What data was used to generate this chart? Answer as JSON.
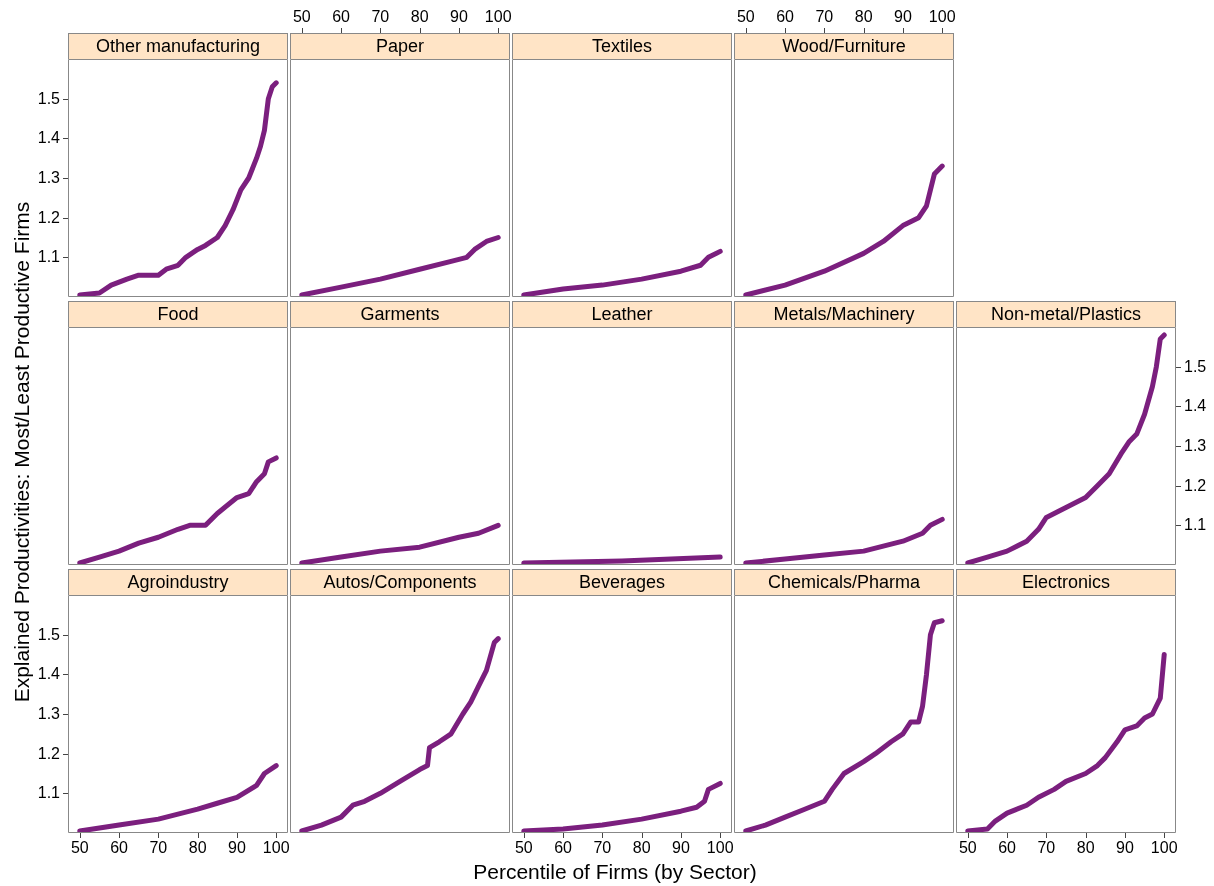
{
  "chart_data": [
    {
      "type": "line",
      "title": "Other manufacturing",
      "color": "#7b1f7e",
      "marker": "none",
      "line_style": "solid",
      "xlim": [
        47,
        103
      ],
      "ylim": [
        1.0,
        1.6
      ],
      "yticks": [
        1.1,
        1.2,
        1.3,
        1.4,
        1.5
      ],
      "tick_labels": "y",
      "x": [
        50,
        55,
        58,
        62,
        65,
        70,
        72,
        75,
        77,
        80,
        82,
        85,
        87,
        89,
        91,
        93,
        95,
        96,
        97,
        98,
        99,
        100
      ],
      "values": [
        1.005,
        1.01,
        1.03,
        1.045,
        1.055,
        1.055,
        1.07,
        1.08,
        1.1,
        1.12,
        1.13,
        1.15,
        1.18,
        1.22,
        1.27,
        1.3,
        1.35,
        1.38,
        1.42,
        1.5,
        1.53,
        1.54
      ]
    },
    {
      "type": "line",
      "title": "Paper",
      "color": "#7b1f7e",
      "marker": "none",
      "line_style": "solid",
      "xlim": [
        47,
        103
      ],
      "x2lim": [
        47,
        103
      ],
      "x2ticks": [
        50,
        60,
        70,
        80,
        90,
        100
      ],
      "ylim": [
        1.0,
        1.6
      ],
      "tick_labels": "x2",
      "x": [
        50,
        60,
        70,
        80,
        88,
        92,
        94,
        97,
        100
      ],
      "values": [
        1.005,
        1.025,
        1.045,
        1.07,
        1.09,
        1.1,
        1.12,
        1.14,
        1.15
      ]
    },
    {
      "type": "line",
      "title": "Textiles",
      "color": "#7b1f7e",
      "marker": "none",
      "line_style": "solid",
      "xlim": [
        47,
        103
      ],
      "ylim": [
        1.0,
        1.6
      ],
      "x": [
        50,
        60,
        70,
        80,
        90,
        95,
        97,
        100
      ],
      "values": [
        1.005,
        1.02,
        1.03,
        1.045,
        1.065,
        1.08,
        1.1,
        1.115
      ]
    },
    {
      "type": "line",
      "title": "Wood/Furniture",
      "color": "#7b1f7e",
      "marker": "none",
      "line_style": "solid",
      "xlim": [
        47,
        103
      ],
      "x2lim": [
        47,
        103
      ],
      "x2ticks": [
        50,
        60,
        70,
        80,
        90,
        100
      ],
      "ylim": [
        1.0,
        1.6
      ],
      "tick_labels": "x2",
      "x": [
        50,
        60,
        70,
        80,
        85,
        90,
        94,
        96,
        98,
        100
      ],
      "values": [
        1.005,
        1.03,
        1.065,
        1.11,
        1.14,
        1.18,
        1.2,
        1.23,
        1.31,
        1.33
      ]
    },
    {
      "type": "line",
      "title": "Food",
      "ylabel": "Explained Productivities: Most/Least Productive Firms",
      "color": "#7b1f7e",
      "marker": "none",
      "line_style": "solid",
      "xlim": [
        47,
        103
      ],
      "ylim": [
        1.0,
        1.6
      ],
      "x": [
        50,
        55,
        60,
        65,
        70,
        75,
        78,
        82,
        85,
        90,
        93,
        95,
        97,
        98,
        100
      ],
      "values": [
        1.005,
        1.02,
        1.035,
        1.055,
        1.07,
        1.09,
        1.1,
        1.1,
        1.13,
        1.17,
        1.18,
        1.21,
        1.23,
        1.26,
        1.27
      ]
    },
    {
      "type": "line",
      "title": "Garments",
      "color": "#7b1f7e",
      "marker": "none",
      "line_style": "solid",
      "xlim": [
        47,
        103
      ],
      "ylim": [
        1.0,
        1.6
      ],
      "x": [
        50,
        60,
        70,
        80,
        90,
        95,
        100
      ],
      "values": [
        1.005,
        1.02,
        1.035,
        1.045,
        1.07,
        1.08,
        1.1
      ]
    },
    {
      "type": "line",
      "title": "Leather",
      "color": "#7b1f7e",
      "marker": "none",
      "line_style": "solid",
      "xlim": [
        47,
        103
      ],
      "ylim": [
        1.0,
        1.6
      ],
      "x": [
        50,
        75,
        100
      ],
      "values": [
        1.005,
        1.01,
        1.02
      ]
    },
    {
      "type": "line",
      "title": "Metals/Machinery",
      "color": "#7b1f7e",
      "marker": "none",
      "line_style": "solid",
      "xlim": [
        47,
        103
      ],
      "ylim": [
        1.0,
        1.6
      ],
      "x": [
        50,
        60,
        70,
        80,
        90,
        95,
        97,
        100
      ],
      "values": [
        1.005,
        1.015,
        1.025,
        1.035,
        1.06,
        1.08,
        1.1,
        1.115
      ]
    },
    {
      "type": "line",
      "title": "Non-metal/Plastics",
      "color": "#7b1f7e",
      "marker": "none",
      "line_style": "solid",
      "xlim": [
        47,
        103
      ],
      "ylim": [
        1.0,
        1.6
      ],
      "yticks": [
        1.1,
        1.2,
        1.3,
        1.4,
        1.5
      ],
      "tick_labels": "y",
      "x": [
        50,
        55,
        60,
        65,
        68,
        70,
        75,
        80,
        83,
        86,
        89,
        91,
        93,
        95,
        97,
        98,
        99,
        100
      ],
      "values": [
        1.005,
        1.02,
        1.035,
        1.06,
        1.09,
        1.12,
        1.145,
        1.17,
        1.2,
        1.23,
        1.28,
        1.31,
        1.33,
        1.38,
        1.45,
        1.5,
        1.57,
        1.58
      ]
    },
    {
      "type": "line",
      "title": "Agroindustry",
      "color": "#7b1f7e",
      "marker": "none",
      "line_style": "solid",
      "xlim": [
        47,
        103
      ],
      "xticks": [
        50,
        60,
        70,
        80,
        90,
        100
      ],
      "ylim": [
        1.0,
        1.6
      ],
      "yticks": [
        1.1,
        1.2,
        1.3,
        1.4,
        1.5
      ],
      "x": [
        50,
        60,
        70,
        80,
        85,
        90,
        95,
        97,
        100
      ],
      "values": [
        1.005,
        1.02,
        1.035,
        1.06,
        1.075,
        1.09,
        1.12,
        1.15,
        1.17
      ]
    },
    {
      "type": "line",
      "title": "Autos/Components",
      "color": "#7b1f7e",
      "marker": "none",
      "line_style": "solid",
      "xlim": [
        47,
        103
      ],
      "ylim": [
        1.0,
        1.6
      ],
      "x": [
        50,
        55,
        60,
        63,
        66,
        70,
        75,
        80,
        82,
        82.5,
        85,
        88,
        91,
        93,
        95,
        97,
        99,
        100
      ],
      "values": [
        1.005,
        1.02,
        1.04,
        1.07,
        1.08,
        1.1,
        1.13,
        1.16,
        1.17,
        1.215,
        1.23,
        1.25,
        1.3,
        1.33,
        1.37,
        1.41,
        1.48,
        1.49
      ]
    },
    {
      "type": "line",
      "title": "Beverages",
      "xlabel": "Percentile of Firms (by Sector)",
      "color": "#7b1f7e",
      "marker": "none",
      "line_style": "solid",
      "xlim": [
        47,
        103
      ],
      "xticks": [
        50,
        60,
        70,
        80,
        90,
        100
      ],
      "ylim": [
        1.0,
        1.6
      ],
      "tick_labels": "x",
      "x": [
        50,
        60,
        70,
        80,
        90,
        94,
        96,
        97,
        100
      ],
      "values": [
        1.005,
        1.01,
        1.02,
        1.035,
        1.055,
        1.065,
        1.08,
        1.11,
        1.125
      ]
    },
    {
      "type": "line",
      "title": "Chemicals/Pharma",
      "color": "#7b1f7e",
      "marker": "none",
      "line_style": "solid",
      "xlim": [
        47,
        103
      ],
      "ylim": [
        1.0,
        1.6
      ],
      "x": [
        50,
        55,
        60,
        65,
        70,
        72,
        75,
        80,
        83,
        87,
        90,
        92,
        94,
        95,
        96,
        97,
        98,
        100
      ],
      "values": [
        1.005,
        1.02,
        1.04,
        1.06,
        1.08,
        1.11,
        1.15,
        1.18,
        1.2,
        1.23,
        1.25,
        1.28,
        1.28,
        1.32,
        1.4,
        1.5,
        1.53,
        1.535
      ]
    },
    {
      "type": "line",
      "title": "Electronics",
      "color": "#7b1f7e",
      "marker": "none",
      "line_style": "solid",
      "xlim": [
        47,
        103
      ],
      "xticks": [
        50,
        60,
        70,
        80,
        90,
        100
      ],
      "ylim": [
        1.0,
        1.6
      ],
      "tick_labels": "x",
      "x": [
        50,
        55,
        57,
        60,
        65,
        68,
        72,
        75,
        80,
        83,
        85,
        88,
        90,
        93,
        95,
        97,
        99,
        100
      ],
      "values": [
        1.005,
        1.01,
        1.03,
        1.05,
        1.07,
        1.09,
        1.11,
        1.13,
        1.15,
        1.17,
        1.19,
        1.23,
        1.26,
        1.27,
        1.29,
        1.3,
        1.34,
        1.45
      ]
    }
  ]
}
